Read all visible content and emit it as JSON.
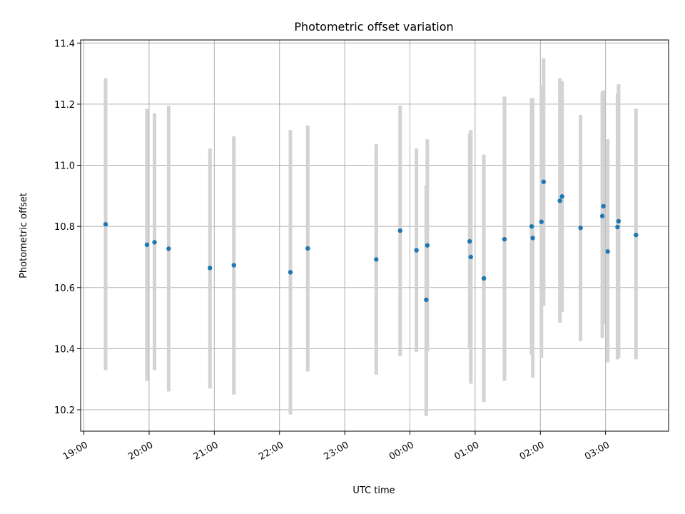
{
  "chart_data": {
    "type": "scatter",
    "title": "Photometric offset variation",
    "xlabel": "UTC time",
    "ylabel": "Photometric offset",
    "grid": true,
    "xlim": [
      "18:57",
      "03:58"
    ],
    "ylim": [
      10.13,
      11.41
    ],
    "x_ticks": [
      "19:00",
      "20:00",
      "21:00",
      "22:00",
      "23:00",
      "00:00",
      "01:00",
      "02:00",
      "03:00"
    ],
    "y_ticks": [
      "10.2",
      "10.4",
      "10.6",
      "10.8",
      "11.0",
      "11.2",
      "11.4"
    ],
    "point_color": "#1f77b4",
    "errorbar_color": "#d3d3d3",
    "points": [
      {
        "x": "19:20",
        "y": 10.807,
        "ymin": 10.33,
        "ymax": 11.285
      },
      {
        "x": "19:58",
        "y": 10.74,
        "ymin": 10.295,
        "ymax": 11.185
      },
      {
        "x": "20:05",
        "y": 10.748,
        "ymin": 10.33,
        "ymax": 11.17
      },
      {
        "x": "20:18",
        "y": 10.727,
        "ymin": 10.26,
        "ymax": 11.195
      },
      {
        "x": "20:56",
        "y": 10.664,
        "ymin": 10.27,
        "ymax": 11.055
      },
      {
        "x": "21:18",
        "y": 10.673,
        "ymin": 10.25,
        "ymax": 11.095
      },
      {
        "x": "22:10",
        "y": 10.65,
        "ymin": 10.185,
        "ymax": 11.115
      },
      {
        "x": "22:26",
        "y": 10.728,
        "ymin": 10.325,
        "ymax": 11.13
      },
      {
        "x": "23:29",
        "y": 10.692,
        "ymin": 10.315,
        "ymax": 11.07
      },
      {
        "x": "23:51",
        "y": 10.786,
        "ymin": 10.375,
        "ymax": 11.195
      },
      {
        "x": "00:06",
        "y": 10.722,
        "ymin": 10.39,
        "ymax": 11.055
      },
      {
        "x": "00:15",
        "y": 10.56,
        "ymin": 10.18,
        "ymax": 10.935
      },
      {
        "x": "00:16",
        "y": 10.738,
        "ymin": 10.39,
        "ymax": 11.085
      },
      {
        "x": "00:55",
        "y": 10.751,
        "ymin": 10.4,
        "ymax": 11.105
      },
      {
        "x": "00:56",
        "y": 10.7,
        "ymin": 10.285,
        "ymax": 11.115
      },
      {
        "x": "01:08",
        "y": 10.63,
        "ymin": 10.225,
        "ymax": 11.035
      },
      {
        "x": "01:27",
        "y": 10.758,
        "ymin": 10.295,
        "ymax": 11.225
      },
      {
        "x": "01:52",
        "y": 10.8,
        "ymin": 10.38,
        "ymax": 11.22
      },
      {
        "x": "01:53",
        "y": 10.762,
        "ymin": 10.305,
        "ymax": 11.22
      },
      {
        "x": "02:01",
        "y": 10.815,
        "ymin": 10.37,
        "ymax": 11.26
      },
      {
        "x": "02:03",
        "y": 10.946,
        "ymin": 10.54,
        "ymax": 11.35
      },
      {
        "x": "02:18",
        "y": 10.884,
        "ymin": 10.485,
        "ymax": 11.285
      },
      {
        "x": "02:20",
        "y": 10.898,
        "ymin": 10.52,
        "ymax": 11.275
      },
      {
        "x": "02:37",
        "y": 10.795,
        "ymin": 10.425,
        "ymax": 11.165
      },
      {
        "x": "02:57",
        "y": 10.834,
        "ymin": 10.435,
        "ymax": 11.24
      },
      {
        "x": "02:58",
        "y": 10.866,
        "ymin": 10.48,
        "ymax": 11.245
      },
      {
        "x": "03:02",
        "y": 10.718,
        "ymin": 10.355,
        "ymax": 11.085
      },
      {
        "x": "03:11",
        "y": 10.798,
        "ymin": 10.365,
        "ymax": 11.235
      },
      {
        "x": "03:12",
        "y": 10.817,
        "ymin": 10.37,
        "ymax": 11.265
      },
      {
        "x": "03:28",
        "y": 10.772,
        "ymin": 10.365,
        "ymax": 11.185
      }
    ]
  }
}
